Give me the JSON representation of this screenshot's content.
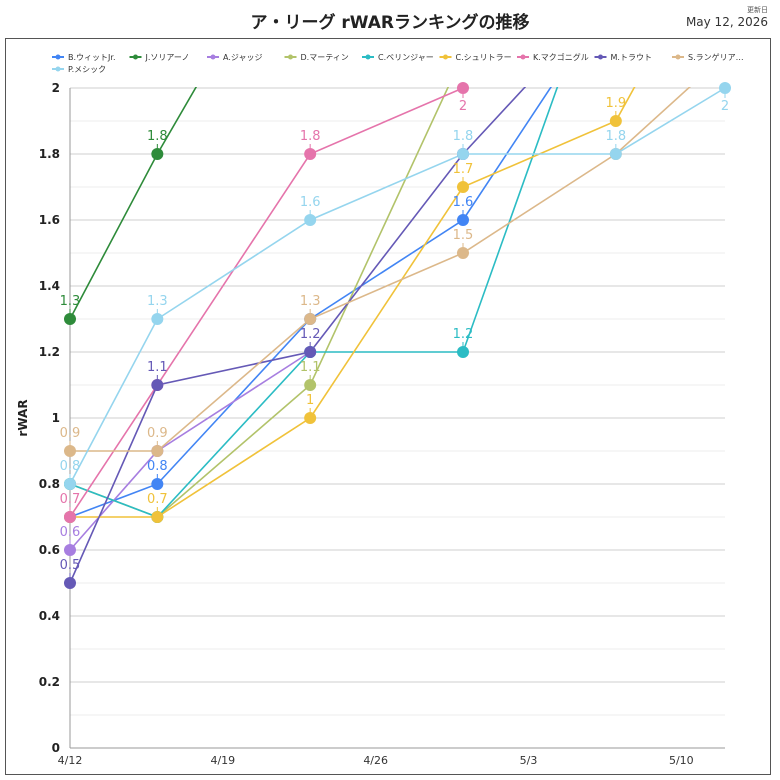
{
  "header": {
    "title": "ア・リーグ rWARランキングの推移",
    "updated_label": "更新日",
    "updated_date": "May 12, 2026"
  },
  "chart_data": {
    "type": "line",
    "title": "ア・リーグ rWARランキングの推移",
    "ylabel": "rWAR",
    "xlabel": "",
    "ylim": [
      0,
      2
    ],
    "yticks": [
      "0",
      "0.2",
      "0.4",
      "0.6",
      "0.8",
      "1",
      "1.2",
      "1.4",
      "1.6",
      "1.8",
      "2"
    ],
    "xticks": [
      "4/12",
      "4/19",
      "4/26",
      "5/3",
      "5/10"
    ],
    "x": [
      "4/12",
      "4/16",
      "4/23",
      "4/30",
      "5/7",
      "5/12"
    ],
    "grid": true,
    "legend_position": "top",
    "series": [
      {
        "name": "B.ウィットJr.",
        "color": "#4285f4",
        "values": [
          0.7,
          0.8,
          1.3,
          1.6,
          2.3,
          null
        ],
        "labels": [
          "",
          "0.8",
          "",
          "1.6",
          "",
          ""
        ]
      },
      {
        "name": "J.ソリアーノ",
        "color": "#2e8b3a",
        "values": [
          1.3,
          1.8,
          2.6,
          null,
          null,
          null
        ],
        "labels": [
          "1.3",
          "1.8",
          "",
          "",
          "",
          ""
        ]
      },
      {
        "name": "A.ジャッジ",
        "color": "#a77ee0",
        "values": [
          0.6,
          0.9,
          1.2,
          null,
          null,
          null
        ],
        "labels": [
          "0.6",
          "",
          "",
          "",
          "",
          ""
        ]
      },
      {
        "name": "D.マーティン",
        "color": "#b2c36a",
        "values": [
          0.8,
          0.7,
          1.1,
          2.1,
          null,
          null
        ],
        "labels": [
          "",
          "",
          "1.1",
          "",
          "",
          ""
        ]
      },
      {
        "name": "C.ベリンジャー",
        "color": "#2bbcc4",
        "values": [
          0.8,
          0.7,
          1.2,
          1.2,
          2.5,
          null
        ],
        "labels": [
          "",
          "",
          "",
          "1.2",
          "",
          ""
        ]
      },
      {
        "name": "C.シュリトラー",
        "color": "#f0c23a",
        "values": [
          0.7,
          0.7,
          1.0,
          1.7,
          1.9,
          2.5
        ],
        "labels": [
          "",
          "0.7",
          "1",
          "1.7",
          "1.9",
          ""
        ]
      },
      {
        "name": "K.マクゴニグル",
        "color": "#e574ab",
        "values": [
          0.7,
          1.1,
          1.8,
          2.0,
          null,
          null
        ],
        "labels": [
          "0.7",
          "",
          "1.8",
          "2",
          "",
          ""
        ]
      },
      {
        "name": "M.トラウト",
        "color": "#6559b6",
        "values": [
          0.5,
          1.1,
          1.2,
          1.8,
          2.3,
          null
        ],
        "labels": [
          "0.5",
          "1.1",
          "1.2",
          "",
          "",
          ""
        ]
      },
      {
        "name": "S.ランゲリア…",
        "color": "#dcb88a",
        "values": [
          0.9,
          0.9,
          1.3,
          1.5,
          1.8,
          2.1
        ],
        "labels": [
          "0.9",
          "0.9",
          "1.3",
          "1.5",
          "",
          ""
        ]
      },
      {
        "name": "P.メシック",
        "color": "#95d5ee",
        "values": [
          0.8,
          1.3,
          1.6,
          1.8,
          1.8,
          2.0
        ],
        "labels": [
          "0.8",
          "1.3",
          "1.6",
          "1.8",
          "1.8",
          "2"
        ]
      }
    ]
  }
}
